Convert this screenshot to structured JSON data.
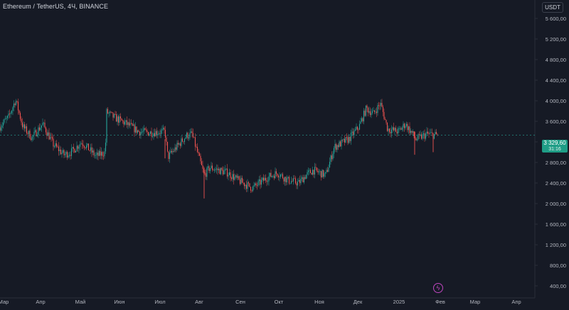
{
  "header": {
    "symbol_title": "Ethereum / TetherUS, 4Ч, BINANCE",
    "currency_button": "USDT"
  },
  "last_price": {
    "value": "3 329,60",
    "countdown": "31:16"
  },
  "colors": {
    "background": "#161a25",
    "up": "#26a69a",
    "down": "#ef5350",
    "axis_text": "#b2b5be",
    "badge": "#1f9d86",
    "event": "#c146c1"
  },
  "icons": {
    "event": "lightning-bolt-icon"
  },
  "chart_data": {
    "type": "candlestick",
    "interval": "4Ч",
    "y_axis": {
      "ticks": [
        400,
        800,
        1200,
        1600,
        2000,
        2400,
        2800,
        3200,
        3600,
        4000,
        4400,
        4800,
        5200,
        5600
      ],
      "tick_labels": [
        "400,00",
        "800,00",
        "1 200,00",
        "1 600,00",
        "2 000,00",
        "2 400,00",
        "2 800,00",
        "3 200,00",
        "3 600,00",
        "4 000,00",
        "4 400,00",
        "4 800,00",
        "5 200,00",
        "5 600,00"
      ],
      "range": [
        300,
        5800
      ]
    },
    "x_axis": {
      "labels": [
        "Мар",
        "Апр",
        "Май",
        "Июн",
        "Июл",
        "Авг",
        "Сен",
        "Окт",
        "Ноя",
        "Дек",
        "2025",
        "Фев",
        "Мар",
        "Апр"
      ]
    },
    "grid": false,
    "current_price": 3329.6,
    "price_path": [
      [
        "Мар",
        3500
      ],
      [
        "Мар",
        3680
      ],
      [
        "Мар",
        4020
      ],
      [
        "Мар",
        3500
      ],
      [
        "Апр",
        3280
      ],
      [
        "Апр",
        3550
      ],
      [
        "Апр",
        3150
      ],
      [
        "Апр",
        2950
      ],
      [
        "Май",
        3000
      ],
      [
        "Май",
        3200
      ],
      [
        "Май",
        2920
      ],
      [
        "Май",
        3000
      ],
      [
        "Июн",
        3780
      ],
      [
        "Июн",
        3680
      ],
      [
        "Июн",
        3550
      ],
      [
        "Июн",
        3400
      ],
      [
        "Июл",
        3380
      ],
      [
        "Июл",
        3400
      ],
      [
        "Июл",
        2900
      ],
      [
        "Июл",
        3320
      ],
      [
        "Авг",
        3350
      ],
      [
        "Авг",
        2550
      ],
      [
        "Авг",
        2700
      ],
      [
        "Авг",
        2600
      ],
      [
        "Сен",
        2450
      ],
      [
        "Сен",
        2300
      ],
      [
        "Сен",
        2500
      ],
      [
        "Сен",
        2600
      ],
      [
        "Окт",
        2450
      ],
      [
        "Окт",
        2400
      ],
      [
        "Окт",
        2550
      ],
      [
        "Окт",
        2650
      ],
      [
        "Ноя",
        2550
      ],
      [
        "Ноя",
        3100
      ],
      [
        "Ноя",
        3250
      ],
      [
        "Ноя",
        3500
      ],
      [
        "Дек",
        3850
      ],
      [
        "Дек",
        3750
      ],
      [
        "Дек",
        3950
      ],
      [
        "Дек",
        3450
      ],
      [
        "2025",
        3400
      ],
      [
        "2025",
        3550
      ],
      [
        "2025",
        3250
      ],
      [
        "2025",
        3350
      ],
      [
        "Фев",
        3330
      ]
    ]
  }
}
